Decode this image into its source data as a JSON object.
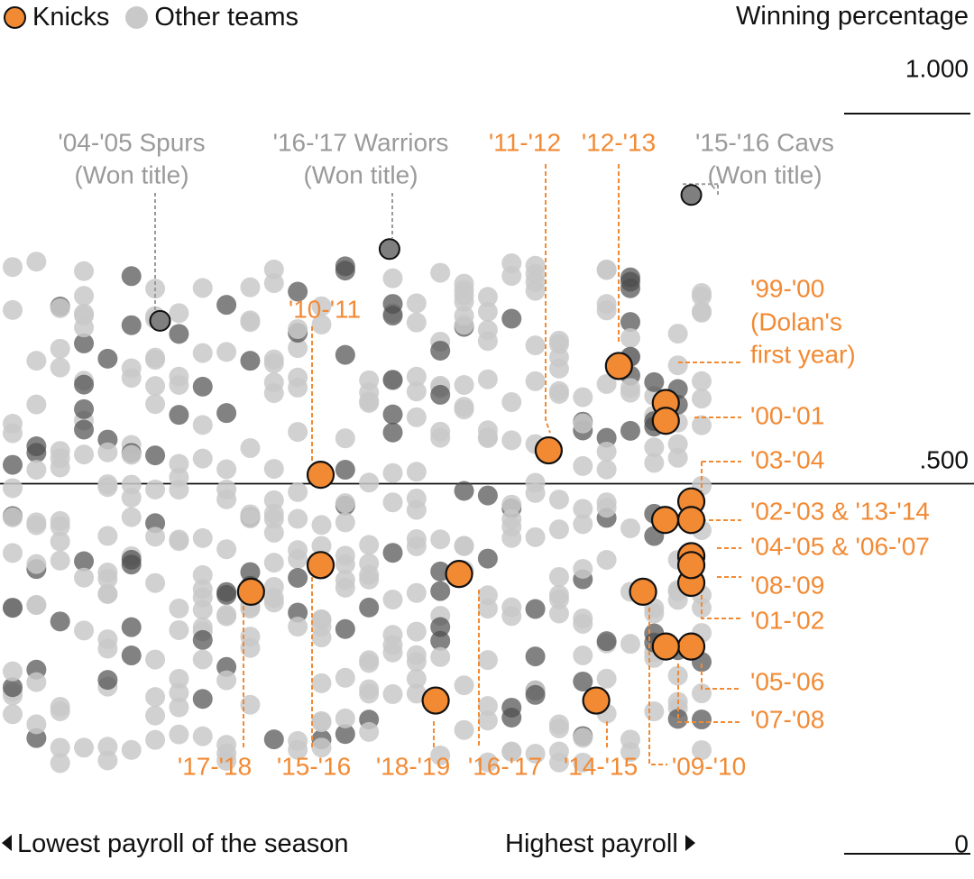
{
  "legend": {
    "knicks_label": "Knicks",
    "others_label": "Other teams"
  },
  "axis": {
    "y_title": "Winning percentage",
    "y_top_label": "1.000",
    "y_mid_label": ".500",
    "y_bottom_label": "0",
    "x_left_label": "Lowest payroll of the season",
    "x_right_label": "Highest payroll"
  },
  "colors": {
    "knicks": "#f28a34",
    "others": "#c9c9c9",
    "highlight": "#7f7f7f",
    "annotation_gray": "#9a9a9a"
  },
  "chart_data": {
    "type": "scatter",
    "title": "",
    "xlabel": "",
    "ylabel": "Winning percentage",
    "ylim": [
      0,
      1
    ],
    "x_scale": "payroll rank (lowest to highest)",
    "series": [
      {
        "name": "Knicks",
        "points": [
          {
            "season": "'99-'00",
            "x": 0.948,
            "y": 0.609
          },
          {
            "season": "'00-'01",
            "x": 0.948,
            "y": 0.585
          },
          {
            "season": "'01-'02",
            "x": 0.985,
            "y": 0.366
          },
          {
            "season": "'02-'03",
            "x": 0.947,
            "y": 0.451
          },
          {
            "season": "'03-'04",
            "x": 0.985,
            "y": 0.476
          },
          {
            "season": "'04-'05",
            "x": 0.985,
            "y": 0.402
          },
          {
            "season": "'05-'06",
            "x": 0.985,
            "y": 0.28
          },
          {
            "season": "'06-'07",
            "x": 0.985,
            "y": 0.402
          },
          {
            "season": "'07-'08",
            "x": 0.948,
            "y": 0.28
          },
          {
            "season": "'08-'09",
            "x": 0.985,
            "y": 0.39
          },
          {
            "season": "'09-'10",
            "x": 0.915,
            "y": 0.354
          },
          {
            "season": "'10-'11",
            "x": 0.447,
            "y": 0.512
          },
          {
            "season": "'11-'12",
            "x": 0.778,
            "y": 0.545
          },
          {
            "season": "'12-'13",
            "x": 0.88,
            "y": 0.659
          },
          {
            "season": "'13-'14",
            "x": 0.985,
            "y": 0.451
          },
          {
            "season": "'14-'15",
            "x": 0.847,
            "y": 0.207
          },
          {
            "season": "'15-'16",
            "x": 0.447,
            "y": 0.39
          },
          {
            "season": "'16-'17",
            "x": 0.648,
            "y": 0.378
          },
          {
            "season": "'17-'18",
            "x": 0.346,
            "y": 0.354
          },
          {
            "season": "'18-'19",
            "x": 0.614,
            "y": 0.207
          }
        ]
      },
      {
        "name": "Other teams",
        "points": []
      }
    ],
    "annotations": [
      {
        "text": "'04-'05 Spurs (Won title)",
        "x": 0.214,
        "y": 0.72
      },
      {
        "text": "'16-'17 Warriors (Won title)",
        "x": 0.547,
        "y": 0.817
      },
      {
        "text": "'15-'16 Cavs (Won title)",
        "x": 0.985,
        "y": 0.89
      }
    ],
    "knicks_labels": [
      "'99-'00",
      "(Dolan's",
      "first year)",
      "'00-'01",
      "'03-'04",
      "'02-'03 & '13-'14",
      "'04-'05 & '06-'07",
      "'08-'09",
      "'01-'02",
      "'05-'06",
      "'07-'08",
      "'10-'11",
      "'11-'12",
      "'12-'13",
      "'17-'18",
      "'15-'16",
      "'18-'19",
      "'16-'17",
      "'14-'15",
      "'09-'10"
    ],
    "grid": false,
    "legend_position": "top-left"
  }
}
